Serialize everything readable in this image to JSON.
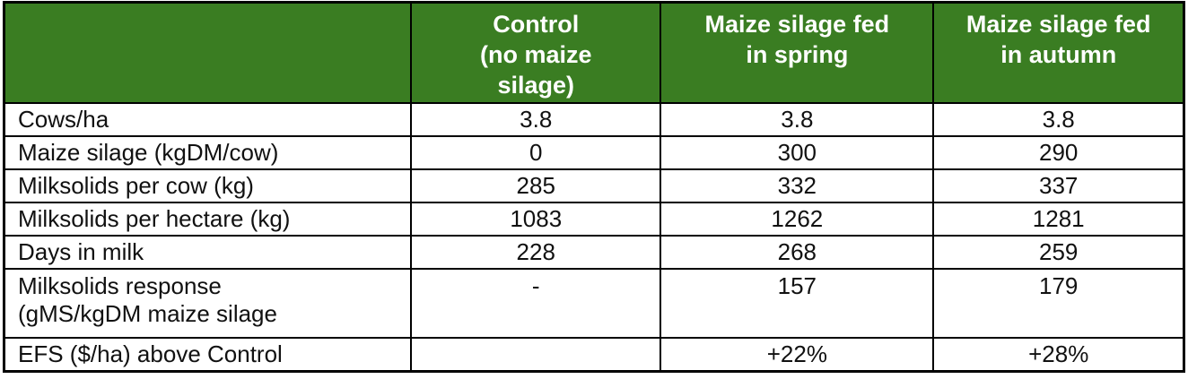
{
  "table": {
    "title_semantic": "Maize silage feeding trial comparison table",
    "colors": {
      "header_bg": "#3a7d22",
      "header_text": "#ffffff",
      "border": "#000000",
      "body_text": "#111111",
      "body_bg": "#ffffff"
    },
    "header": {
      "col_label": "",
      "col_control": "Control\n(no maize\nsilage)",
      "col_spring": "Maize silage fed\nin spring",
      "col_autumn": "Maize silage fed\nin autumn"
    },
    "rows": [
      {
        "label": "Cows/ha",
        "control": "3.8",
        "spring": "3.8",
        "autumn": "3.8"
      },
      {
        "label": "Maize silage (kgDM/cow)",
        "control": "0",
        "spring": "300",
        "autumn": "290"
      },
      {
        "label": "Milksolids per cow (kg)",
        "control": "285",
        "spring": "332",
        "autumn": "337"
      },
      {
        "label": "Milksolids per hectare (kg)",
        "control": "1083",
        "spring": "1262",
        "autumn": "1281"
      },
      {
        "label": "Days in milk",
        "control": "228",
        "spring": "268",
        "autumn": "259"
      },
      {
        "label": "Milksolids response\n(gMS/kgDM maize silage",
        "control": "-",
        "spring": "157",
        "autumn": "179"
      },
      {
        "label": "EFS ($/ha) above Control",
        "control": "",
        "spring": "+22%",
        "autumn": "+28%"
      }
    ]
  }
}
